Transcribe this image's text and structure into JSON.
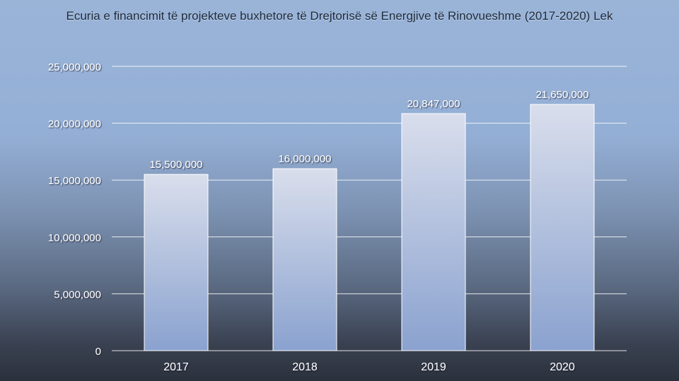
{
  "chart_data": {
    "type": "bar",
    "title": "Ecuria e financimit të projekteve buxhetore të Drejtorisë së Energjive të Rinovueshme (2017-2020) Lek",
    "categories": [
      "2017",
      "2018",
      "2019",
      "2020"
    ],
    "values": [
      15500000,
      16000000,
      20847000,
      21650000
    ],
    "data_labels": [
      "15,500,000",
      "16,000,000",
      "20,847,000",
      "21,650,000"
    ],
    "y_ticks": [
      0,
      5000000,
      10000000,
      15000000,
      20000000,
      25000000
    ],
    "y_tick_labels": [
      "0",
      "5,000,000",
      "10,000,000",
      "15,000,000",
      "20,000,000",
      "25,000,000"
    ],
    "ylim": [
      0,
      25000000
    ],
    "xlabel": "",
    "ylabel": "",
    "grid": true,
    "legend": "none",
    "colors": {
      "bar_top": "#d9deec",
      "bar_bottom": "#8aa2cf",
      "bar_stroke": "#ffffff",
      "grid": "#ffffff",
      "axis_text": "#ffffff",
      "label_text": "#ffffff"
    }
  }
}
